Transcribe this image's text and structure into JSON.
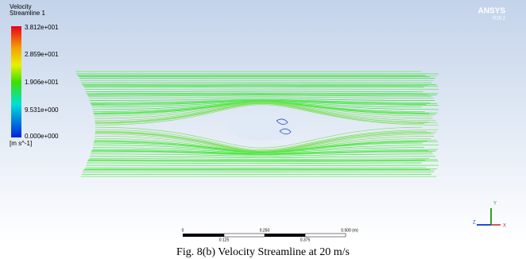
{
  "legend": {
    "title": "Velocity",
    "subtitle": "Streamline 1",
    "labels": [
      "3.812e+001",
      "2.859e+001",
      "1.906e+001",
      "9.531e+000",
      "0.000e+000"
    ],
    "unit": "[m s^-1]"
  },
  "brand": {
    "name": "ANSYS",
    "version": "R16.2"
  },
  "scale_bar": {
    "top_labels": [
      "0",
      "0.250",
      "0.500 (m)"
    ],
    "bottom_labels": [
      "0.125",
      "0.375"
    ]
  },
  "triad": {
    "y": "Y",
    "z": "Z",
    "x": "X"
  },
  "caption": "Fig. 8(b) Velocity Streamline at 20 m/s"
}
